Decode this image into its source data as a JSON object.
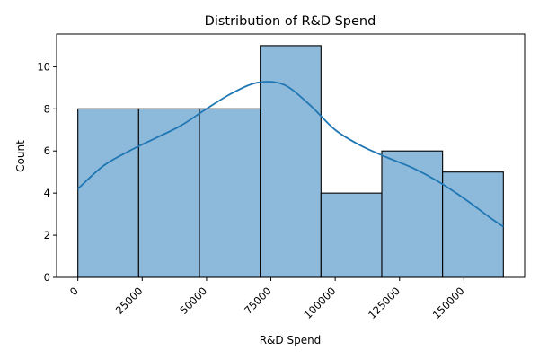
{
  "chart_data": {
    "type": "bar",
    "title": "Distribution of R&D Spend",
    "xlabel": "R&D Spend",
    "ylabel": "Count",
    "bin_edges": [
      0,
      23620,
      47240,
      70860,
      94480,
      118100,
      141720,
      165340
    ],
    "counts": [
      8,
      8,
      8,
      11,
      4,
      6,
      5
    ],
    "xlim": [
      -8267,
      173607
    ],
    "ylim": [
      0,
      11.55
    ],
    "xticks": [
      0,
      25000,
      50000,
      75000,
      100000,
      125000,
      150000
    ],
    "xtick_labels": [
      "0",
      "25000",
      "50000",
      "75000",
      "100000",
      "125000",
      "150000"
    ],
    "yticks": [
      0,
      2,
      4,
      6,
      8,
      10
    ],
    "ytick_labels": [
      "0",
      "2",
      "4",
      "6",
      "8",
      "10"
    ],
    "kde": {
      "x": [
        0,
        10000,
        20000,
        30000,
        40000,
        50000,
        60000,
        70000,
        80000,
        90000,
        100000,
        110000,
        120000,
        130000,
        140000,
        150000,
        160000,
        165340
      ],
      "y": [
        4.2,
        5.3,
        6.0,
        6.6,
        7.2,
        8.0,
        8.75,
        9.25,
        9.15,
        8.2,
        7.0,
        6.25,
        5.7,
        5.2,
        4.55,
        3.75,
        2.85,
        2.4
      ]
    },
    "bar_color": "#8db9db",
    "line_color": "#1f77b4",
    "grid": false
  }
}
